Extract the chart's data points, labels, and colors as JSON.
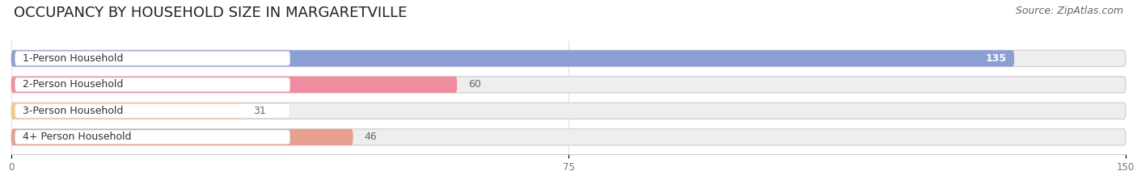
{
  "title": "OCCUPANCY BY HOUSEHOLD SIZE IN MARGARETVILLE",
  "source": "Source: ZipAtlas.com",
  "categories": [
    "1-Person Household",
    "2-Person Household",
    "3-Person Household",
    "4+ Person Household"
  ],
  "values": [
    135,
    60,
    31,
    46
  ],
  "bar_colors": [
    "#8b9fd4",
    "#f08ca0",
    "#f5c98a",
    "#e8a090"
  ],
  "bar_bg_color": "#eeeeee",
  "value_colors": [
    "white",
    "#666666",
    "#666666",
    "#666666"
  ],
  "xlim": [
    0,
    150
  ],
  "xticks": [
    0,
    75,
    150
  ],
  "title_fontsize": 13,
  "label_fontsize": 9,
  "value_fontsize": 9,
  "source_fontsize": 9,
  "bar_height": 0.62,
  "figsize": [
    14.06,
    2.33
  ],
  "dpi": 100
}
